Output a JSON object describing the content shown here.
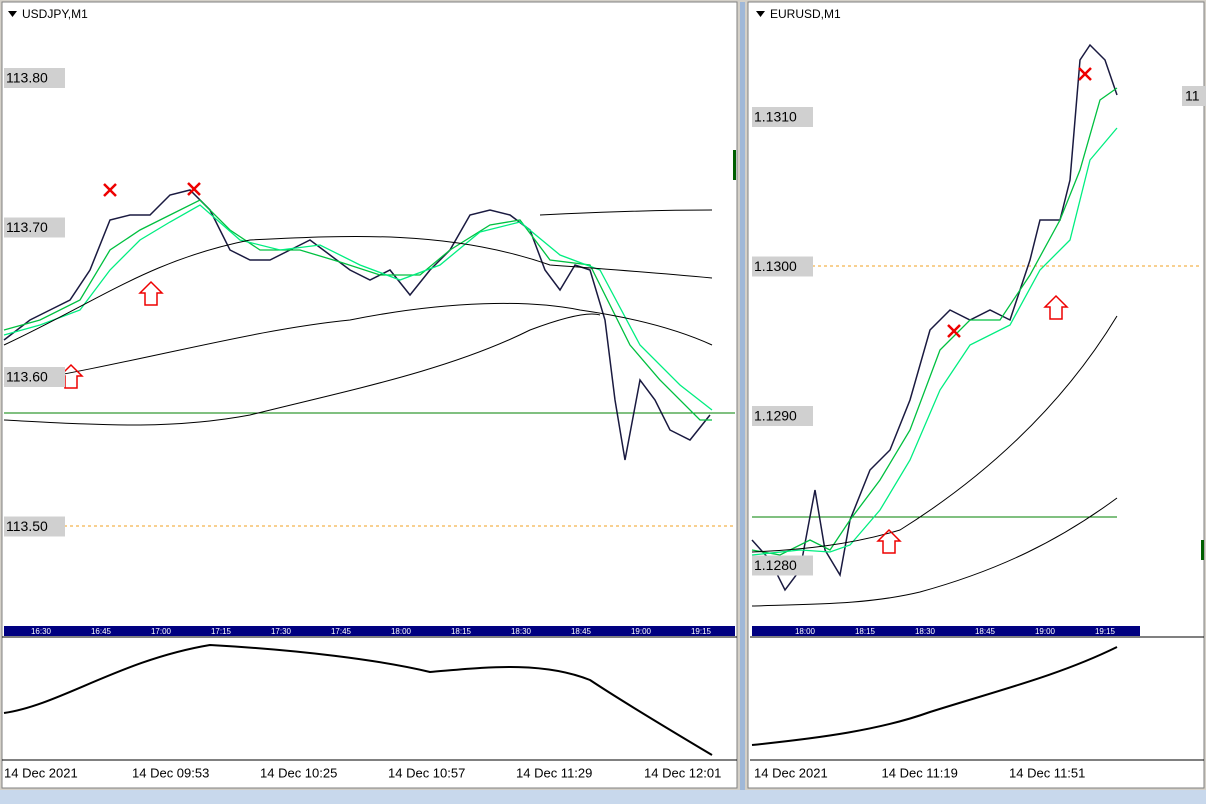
{
  "panels": [
    {
      "title": "USDJPY,M1",
      "price_labels": [
        "113.80",
        "113.70",
        "113.60",
        "113.50"
      ],
      "strip_times": [
        "16:30",
        "16:45",
        "17:00",
        "17:15",
        "17:30",
        "17:45",
        "18:00",
        "18:15",
        "18:30",
        "18:45",
        "19:00",
        "19:15"
      ],
      "bottom_times": [
        "14 Dec 2021",
        "14 Dec 09:53",
        "14 Dec 10:25",
        "14 Dec 10:57",
        "14 Dec 11:29",
        "14 Dec 12:01"
      ]
    },
    {
      "title": "EURUSD,M1",
      "price_labels": [
        "1.1310",
        "1.1300",
        "1.1290",
        "1.1280"
      ],
      "strip_times": [
        "18:00",
        "18:15",
        "18:30",
        "18:45",
        "19:00",
        "19:15"
      ],
      "bottom_times": [
        "14 Dec 2021",
        "14 Dec 11:19",
        "14 Dec 11:51"
      ],
      "clipped_label": "11"
    }
  ]
}
